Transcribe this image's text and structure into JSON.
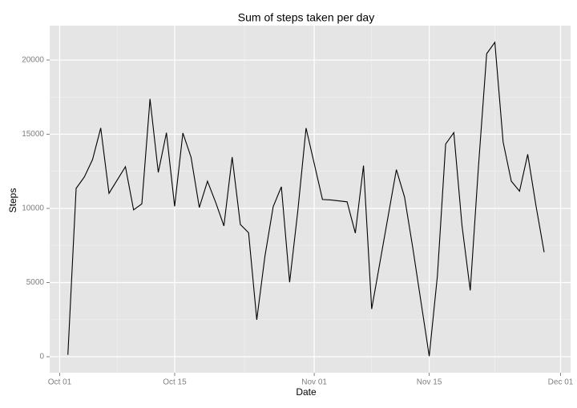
{
  "chart_data": {
    "type": "line",
    "title": "Sum of steps taken per day",
    "xlabel": "Date",
    "ylabel": "Steps",
    "x": [
      "Oct 02",
      "Oct 03",
      "Oct 04",
      "Oct 05",
      "Oct 06",
      "Oct 07",
      "Oct 09",
      "Oct 10",
      "Oct 11",
      "Oct 12",
      "Oct 13",
      "Oct 14",
      "Oct 15",
      "Oct 16",
      "Oct 17",
      "Oct 18",
      "Oct 19",
      "Oct 20",
      "Oct 21",
      "Oct 22",
      "Oct 23",
      "Oct 24",
      "Oct 25",
      "Oct 26",
      "Oct 27",
      "Oct 28",
      "Oct 29",
      "Oct 30",
      "Oct 31",
      "Nov 02",
      "Nov 03",
      "Nov 05",
      "Nov 06",
      "Nov 07",
      "Nov 08",
      "Nov 11",
      "Nov 12",
      "Nov 13",
      "Nov 15",
      "Nov 16",
      "Nov 17",
      "Nov 18",
      "Nov 19",
      "Nov 20",
      "Nov 21",
      "Nov 22",
      "Nov 23",
      "Nov 24",
      "Nov 25",
      "Nov 26",
      "Nov 27",
      "Nov 28",
      "Nov 29"
    ],
    "series": [
      {
        "name": "Steps",
        "color": "#000000",
        "values": [
          126,
          11352,
          12116,
          13294,
          15420,
          11015,
          12811,
          9900,
          10304,
          17382,
          12426,
          15098,
          10139,
          15084,
          13452,
          10056,
          11829,
          10395,
          8821,
          13460,
          8918,
          8355,
          2492,
          6778,
          10119,
          11458,
          5018,
          9819,
          15414,
          10600,
          10571,
          10439,
          8334,
          12883,
          3219,
          12608,
          10765,
          7336,
          41,
          5441,
          14339,
          15110,
          8841,
          4472,
          12787,
          20427,
          21194,
          14478,
          11834,
          11162,
          13646,
          10183,
          7047
        ]
      }
    ],
    "xticks": [
      "Oct 01",
      "Oct 15",
      "Nov 01",
      "Nov 15",
      "Dec 01"
    ],
    "ylim": [
      -1080,
      22320
    ],
    "yticks": [
      0,
      5000,
      10000,
      15000,
      20000
    ],
    "grid": true
  }
}
